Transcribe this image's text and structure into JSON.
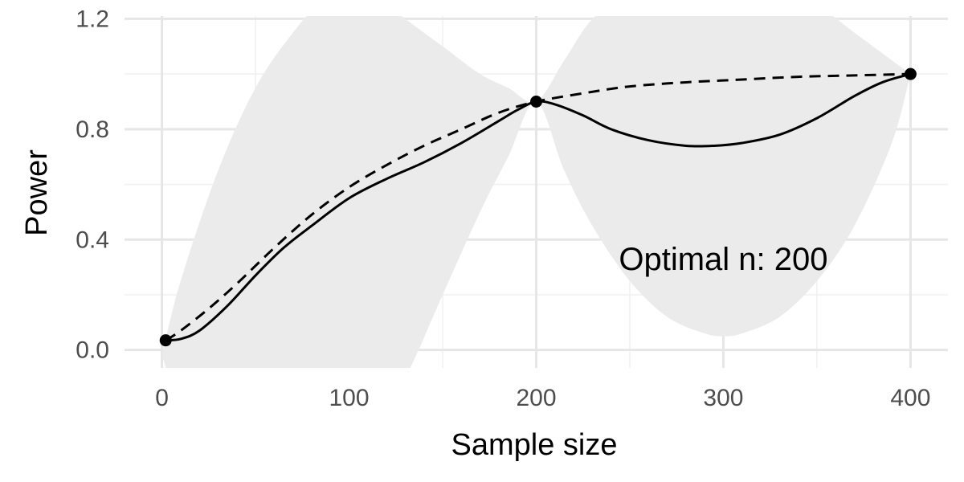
{
  "chart_data": {
    "type": "line",
    "title": "",
    "xlabel": "Sample size",
    "ylabel": "Power",
    "xlim": [
      -20,
      420
    ],
    "ylim": [
      -0.065,
      1.21
    ],
    "x_ticks": [
      0,
      100,
      200,
      300,
      400
    ],
    "x_tick_labels": [
      "0",
      "100",
      "200",
      "300",
      "400"
    ],
    "y_ticks": [
      0.0,
      0.4,
      0.8,
      1.2
    ],
    "y_tick_labels": [
      "0.0",
      "0.4",
      "0.8",
      "1.2"
    ],
    "grid": true,
    "legend": "none",
    "annotation": "Optimal n:  200",
    "annotation_position": {
      "x": 300,
      "y": 0.29
    },
    "points": [
      {
        "x": 2,
        "y": 0.035
      },
      {
        "x": 200,
        "y": 0.9
      },
      {
        "x": 400,
        "y": 1.0
      }
    ],
    "series": [
      {
        "style": "solid",
        "x": [
          2,
          10,
          20,
          35,
          50,
          65,
          80,
          100,
          120,
          140,
          160,
          180,
          190,
          200,
          210,
          225,
          240,
          260,
          280,
          295,
          310,
          330,
          350,
          370,
          385,
          400
        ],
        "y": [
          0.035,
          0.04,
          0.07,
          0.16,
          0.27,
          0.37,
          0.45,
          0.55,
          0.62,
          0.68,
          0.75,
          0.83,
          0.87,
          0.9,
          0.89,
          0.85,
          0.8,
          0.76,
          0.74,
          0.74,
          0.75,
          0.78,
          0.84,
          0.92,
          0.97,
          1.0
        ]
      },
      {
        "style": "dashed",
        "x": [
          2,
          10,
          25,
          40,
          60,
          80,
          100,
          120,
          140,
          160,
          180,
          200,
          225,
          250,
          280,
          310,
          340,
          370,
          400
        ],
        "y": [
          0.035,
          0.07,
          0.15,
          0.24,
          0.37,
          0.49,
          0.59,
          0.67,
          0.74,
          0.8,
          0.86,
          0.9,
          0.93,
          0.955,
          0.97,
          0.98,
          0.99,
          0.995,
          1.0
        ]
      }
    ],
    "band": {
      "color": "#ebebeb",
      "x": [
        0,
        10,
        30,
        50,
        70,
        90,
        100,
        110,
        130,
        150,
        170,
        185,
        200,
        215,
        230,
        250,
        270,
        290,
        300,
        310,
        330,
        350,
        370,
        390,
        400
      ],
      "upper": [
        -0.02,
        0.25,
        0.65,
        0.95,
        1.15,
        1.3,
        1.32,
        1.3,
        1.2,
        1.1,
        1.0,
        0.95,
        0.9,
        1.05,
        1.2,
        1.3,
        1.35,
        1.36,
        1.36,
        1.35,
        1.3,
        1.25,
        1.15,
        1.05,
        1.0
      ],
      "lower": [
        -0.02,
        -0.2,
        -0.4,
        -0.5,
        -0.5,
        -0.4,
        -0.35,
        -0.3,
        -0.1,
        0.2,
        0.5,
        0.7,
        0.9,
        0.65,
        0.45,
        0.25,
        0.12,
        0.06,
        0.05,
        0.06,
        0.12,
        0.25,
        0.45,
        0.75,
        1.0
      ]
    },
    "colors": {
      "line": "#000000",
      "grid_major": "#e6e6e6",
      "grid_minor": "#f0f0f0"
    }
  }
}
